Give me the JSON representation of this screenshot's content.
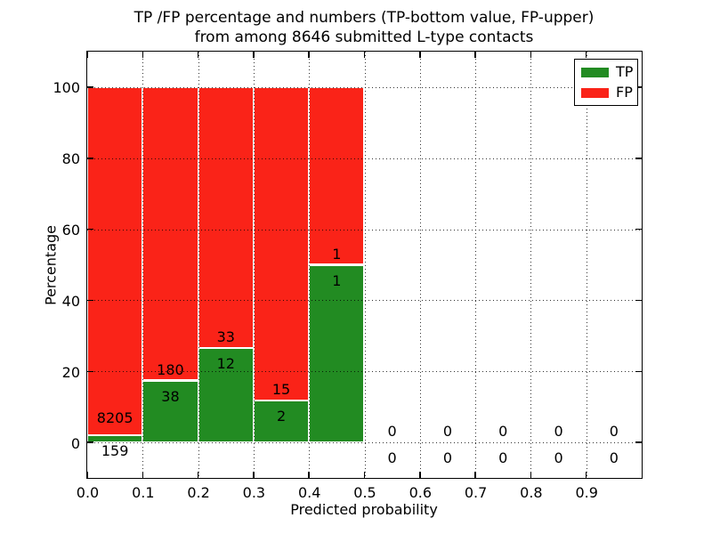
{
  "chart_data": {
    "type": "bar",
    "stacked": true,
    "title_line1": "TP /FP percentage and numbers (TP-bottom value, FP-upper)",
    "title_line2": "from among 8646 submitted L-type contacts",
    "xlabel": "Predicted probability",
    "ylabel": "Percentage",
    "xlim": [
      0.0,
      1.0
    ],
    "ylim": [
      -10,
      110
    ],
    "xticks": [
      "0.0",
      "0.1",
      "0.2",
      "0.3",
      "0.4",
      "0.5",
      "0.6",
      "0.7",
      "0.8",
      "0.9"
    ],
    "yticks": [
      0,
      20,
      40,
      60,
      80,
      100
    ],
    "grid": true,
    "grid_style": "dotted",
    "total_submitted_contacts": 8646,
    "bins": [
      {
        "x_start": 0.0,
        "x_end": 0.1,
        "tp_count": 159,
        "fp_count": 8205,
        "tp_pct": 1.9,
        "fp_pct": 98.1
      },
      {
        "x_start": 0.1,
        "x_end": 0.2,
        "tp_count": 38,
        "fp_count": 180,
        "tp_pct": 17.43,
        "fp_pct": 82.57
      },
      {
        "x_start": 0.2,
        "x_end": 0.3,
        "tp_count": 12,
        "fp_count": 33,
        "tp_pct": 26.67,
        "fp_pct": 73.33
      },
      {
        "x_start": 0.3,
        "x_end": 0.4,
        "tp_count": 2,
        "fp_count": 15,
        "tp_pct": 11.76,
        "fp_pct": 88.24
      },
      {
        "x_start": 0.4,
        "x_end": 0.5,
        "tp_count": 1,
        "fp_count": 1,
        "tp_pct": 50.0,
        "fp_pct": 50.0
      },
      {
        "x_start": 0.5,
        "x_end": 0.6,
        "tp_count": 0,
        "fp_count": 0,
        "tp_pct": 0,
        "fp_pct": 0
      },
      {
        "x_start": 0.6,
        "x_end": 0.7,
        "tp_count": 0,
        "fp_count": 0,
        "tp_pct": 0,
        "fp_pct": 0
      },
      {
        "x_start": 0.7,
        "x_end": 0.8,
        "tp_count": 0,
        "fp_count": 0,
        "tp_pct": 0,
        "fp_pct": 0
      },
      {
        "x_start": 0.8,
        "x_end": 0.9,
        "tp_count": 0,
        "fp_count": 0,
        "tp_pct": 0,
        "fp_pct": 0
      },
      {
        "x_start": 0.9,
        "x_end": 1.0,
        "tp_count": 0,
        "fp_count": 0,
        "tp_pct": 0,
        "fp_pct": 0
      }
    ],
    "colors": {
      "tp": "#228b22",
      "fp": "#fa2318"
    },
    "legend": {
      "position": "upper right",
      "entries": [
        {
          "label": "TP",
          "color_key": "tp"
        },
        {
          "label": "FP",
          "color_key": "fp"
        }
      ]
    }
  }
}
